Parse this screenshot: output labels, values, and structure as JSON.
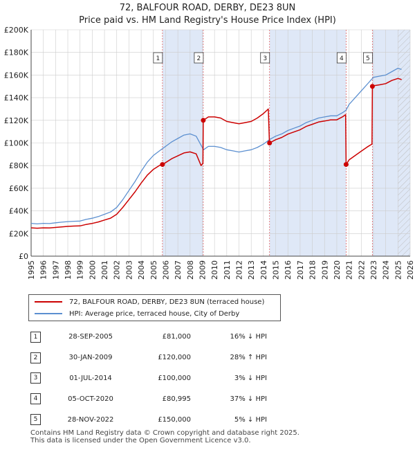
{
  "title_line1": "72, BALFOUR ROAD, DERBY, DE23 8UN",
  "title_line2": "Price paid vs. HM Land Registry's House Price Index (HPI)",
  "legend": {
    "property_label": "72, BALFOUR ROAD, DERBY, DE23 8UN (terraced house)",
    "hpi_label": "HPI: Average price, terraced house, City of Derby"
  },
  "colors": {
    "property": "#cc0000",
    "hpi": "#5b8fd0",
    "shade": "#dfe8f7",
    "grid": "#cccccc"
  },
  "sales": [
    {
      "num": "1",
      "date": "28-SEP-2005",
      "price": "£81,000",
      "hpi": "16% ↓ HPI"
    },
    {
      "num": "2",
      "date": "30-JAN-2009",
      "price": "£120,000",
      "hpi": "28% ↑ HPI"
    },
    {
      "num": "3",
      "date": "01-JUL-2014",
      "price": "£100,000",
      "hpi": "3% ↓ HPI"
    },
    {
      "num": "4",
      "date": "05-OCT-2020",
      "price": "£80,995",
      "hpi": "37% ↓ HPI"
    },
    {
      "num": "5",
      "date": "28-NOV-2022",
      "price": "£150,000",
      "hpi": "5% ↓ HPI"
    }
  ],
  "footer": {
    "line1": "Contains HM Land Registry data © Crown copyright and database right 2025.",
    "line2": "This data is licensed under the Open Government Licence v3.0."
  },
  "chart_data": {
    "type": "line",
    "title": "72, BALFOUR ROAD, DERBY, DE23 8UN",
    "subtitle": "Price paid vs. HM Land Registry's House Price Index (HPI)",
    "xlim": [
      1995,
      2026
    ],
    "ylim": [
      0,
      200000
    ],
    "x_ticks": [
      1995,
      1996,
      1997,
      1998,
      1999,
      2000,
      2001,
      2002,
      2003,
      2004,
      2005,
      2006,
      2007,
      2008,
      2009,
      2010,
      2011,
      2012,
      2013,
      2014,
      2015,
      2016,
      2017,
      2018,
      2019,
      2020,
      2021,
      2022,
      2023,
      2024,
      2025,
      2026
    ],
    "y_ticks": [
      0,
      20000,
      40000,
      60000,
      80000,
      100000,
      120000,
      140000,
      160000,
      180000,
      200000
    ],
    "y_tick_labels": [
      "£0",
      "£20K",
      "£40K",
      "£60K",
      "£80K",
      "£100K",
      "£120K",
      "£140K",
      "£160K",
      "£180K",
      "£200K"
    ],
    "grid": true,
    "shaded_periods": [
      [
        2005.74,
        2009.08
      ],
      [
        2014.5,
        2020.76
      ],
      [
        2022.91,
        2026
      ]
    ],
    "future_hatch_from": 2025.0,
    "sale_markers": [
      {
        "label": "1",
        "x": 2005.74,
        "y": 81000
      },
      {
        "label": "2",
        "x": 2009.08,
        "y": 120000
      },
      {
        "label": "3",
        "x": 2014.5,
        "y": 100000
      },
      {
        "label": "4",
        "x": 2020.76,
        "y": 80995
      },
      {
        "label": "5",
        "x": 2022.91,
        "y": 150000
      }
    ],
    "series": [
      {
        "name": "HPI: Average price, terraced house, City of Derby",
        "points": [
          [
            1995,
            29000
          ],
          [
            1995.5,
            28500
          ],
          [
            1996,
            29000
          ],
          [
            1996.5,
            28800
          ],
          [
            1997,
            29500
          ],
          [
            1997.5,
            30000
          ],
          [
            1998,
            30500
          ],
          [
            1998.5,
            30800
          ],
          [
            1999,
            31000
          ],
          [
            1999.5,
            32500
          ],
          [
            2000,
            33500
          ],
          [
            2000.5,
            35000
          ],
          [
            2001,
            37000
          ],
          [
            2001.5,
            39000
          ],
          [
            2002,
            43000
          ],
          [
            2002.5,
            50000
          ],
          [
            2003,
            58000
          ],
          [
            2003.5,
            66000
          ],
          [
            2004,
            75000
          ],
          [
            2004.5,
            83000
          ],
          [
            2005,
            89000
          ],
          [
            2005.5,
            93000
          ],
          [
            2005.74,
            95000
          ],
          [
            2006,
            97000
          ],
          [
            2006.5,
            101000
          ],
          [
            2007,
            104000
          ],
          [
            2007.5,
            107000
          ],
          [
            2008,
            108000
          ],
          [
            2008.5,
            106000
          ],
          [
            2008.9,
            98000
          ],
          [
            2009.1,
            94000
          ],
          [
            2009.5,
            97000
          ],
          [
            2010,
            97000
          ],
          [
            2010.5,
            96000
          ],
          [
            2011,
            94000
          ],
          [
            2011.5,
            93000
          ],
          [
            2012,
            92000
          ],
          [
            2012.5,
            93000
          ],
          [
            2013,
            94000
          ],
          [
            2013.5,
            96000
          ],
          [
            2014,
            99000
          ],
          [
            2014.5,
            103000
          ],
          [
            2015,
            106000
          ],
          [
            2015.5,
            108000
          ],
          [
            2016,
            111000
          ],
          [
            2016.5,
            113000
          ],
          [
            2017,
            115000
          ],
          [
            2017.5,
            118000
          ],
          [
            2018,
            120000
          ],
          [
            2018.5,
            122000
          ],
          [
            2019,
            123000
          ],
          [
            2019.5,
            124000
          ],
          [
            2020,
            124000
          ],
          [
            2020.5,
            127000
          ],
          [
            2020.76,
            129000
          ],
          [
            2021,
            134000
          ],
          [
            2021.5,
            140000
          ],
          [
            2022,
            146000
          ],
          [
            2022.5,
            152000
          ],
          [
            2022.91,
            157000
          ],
          [
            2023,
            158000
          ],
          [
            2023.5,
            159000
          ],
          [
            2024,
            160000
          ],
          [
            2024.5,
            163000
          ],
          [
            2025,
            166000
          ],
          [
            2025.3,
            165000
          ]
        ]
      },
      {
        "name": "72, BALFOUR ROAD, DERBY, DE23 8UN (terraced house)",
        "points": [
          [
            1995,
            25000
          ],
          [
            1995.5,
            24700
          ],
          [
            1996,
            25000
          ],
          [
            1996.5,
            24900
          ],
          [
            1997,
            25400
          ],
          [
            1997.5,
            25800
          ],
          [
            1998,
            26300
          ],
          [
            1998.5,
            26600
          ],
          [
            1999,
            26700
          ],
          [
            1999.5,
            28000
          ],
          [
            2000,
            28900
          ],
          [
            2000.5,
            30200
          ],
          [
            2001,
            31900
          ],
          [
            2001.5,
            33600
          ],
          [
            2002,
            37000
          ],
          [
            2002.5,
            43100
          ],
          [
            2003,
            50000
          ],
          [
            2003.5,
            56900
          ],
          [
            2004,
            64600
          ],
          [
            2004.5,
            71500
          ],
          [
            2005,
            76700
          ],
          [
            2005.5,
            80100
          ],
          [
            2005.74,
            81000
          ],
          [
            2006,
            82700
          ],
          [
            2006.5,
            86100
          ],
          [
            2007,
            88600
          ],
          [
            2007.5,
            91200
          ],
          [
            2008,
            92100
          ],
          [
            2008.5,
            90400
          ],
          [
            2008.9,
            80000
          ],
          [
            2009.05,
            82000
          ],
          [
            2009.08,
            120000
          ],
          [
            2009.5,
            123000
          ],
          [
            2010,
            123000
          ],
          [
            2010.5,
            122000
          ],
          [
            2011,
            119000
          ],
          [
            2011.5,
            118000
          ],
          [
            2012,
            117000
          ],
          [
            2012.5,
            118000
          ],
          [
            2013,
            119000
          ],
          [
            2013.5,
            122000
          ],
          [
            2014,
            126000
          ],
          [
            2014.4,
            130000
          ],
          [
            2014.48,
            103000
          ],
          [
            2014.5,
            100000
          ],
          [
            2015,
            102900
          ],
          [
            2015.5,
            104900
          ],
          [
            2016,
            107800
          ],
          [
            2016.5,
            109700
          ],
          [
            2017,
            111700
          ],
          [
            2017.5,
            114600
          ],
          [
            2018,
            116500
          ],
          [
            2018.5,
            118500
          ],
          [
            2019,
            119400
          ],
          [
            2019.5,
            120400
          ],
          [
            2020,
            120400
          ],
          [
            2020.5,
            123300
          ],
          [
            2020.72,
            125000
          ],
          [
            2020.76,
            80995
          ],
          [
            2021,
            85000
          ],
          [
            2021.5,
            88900
          ],
          [
            2022,
            92700
          ],
          [
            2022.5,
            96500
          ],
          [
            2022.88,
            99000
          ],
          [
            2022.91,
            150000
          ],
          [
            2023,
            150500
          ],
          [
            2023.5,
            151400
          ],
          [
            2024,
            152400
          ],
          [
            2024.5,
            155200
          ],
          [
            2025,
            157000
          ],
          [
            2025.3,
            156000
          ]
        ]
      }
    ]
  }
}
